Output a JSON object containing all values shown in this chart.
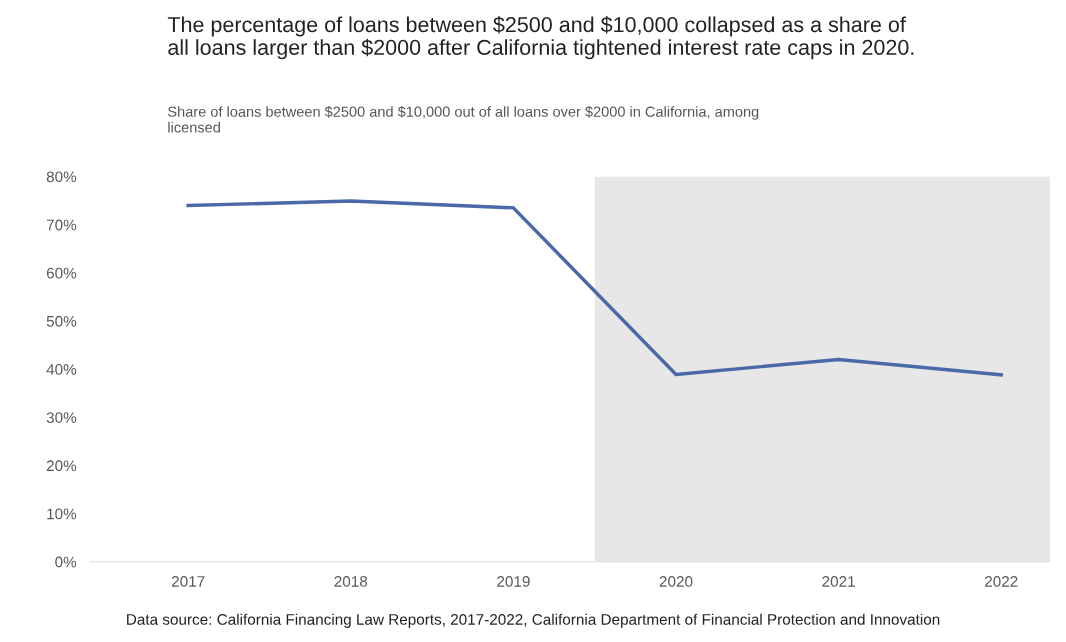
{
  "chart_data": {
    "type": "line",
    "title": "The percentage of loans between $2500 and $10,000 collapsed as a share of\nall loans larger than $2000 after California tightened interest rate caps in 2020.",
    "subtitle": "Share of loans between $2500 and $10,000 out of all loans over $2000 in California, among\nlicensed",
    "x": [
      2017,
      2018,
      2019,
      2020,
      2021,
      2022
    ],
    "series": [
      {
        "color": "#4a69a8",
        "values": [
          74.0,
          74.9,
          73.5,
          38.9,
          42.0,
          38.8
        ]
      }
    ],
    "xlim": [
      2016.4,
      2022.3
    ],
    "xticks": [
      2017,
      2018,
      2019,
      2020,
      2021,
      2022
    ],
    "ylim": [
      0,
      80
    ],
    "yticks": [
      {
        "value": 0,
        "label": "0%"
      },
      {
        "value": 10,
        "label": "10%"
      },
      {
        "value": 20,
        "label": "20%"
      },
      {
        "value": 30,
        "label": "30%"
      },
      {
        "value": 40,
        "label": "40%"
      },
      {
        "value": 50,
        "label": "50%"
      },
      {
        "value": 60,
        "label": "60%"
      },
      {
        "value": 70,
        "label": "70%"
      },
      {
        "value": 80,
        "label": "80%"
      }
    ],
    "bands": [
      {
        "axis": "x",
        "from": 2019.5,
        "to": 2022.3,
        "color": "#e8e7e8"
      }
    ],
    "annotations": [
      "Data source: California Financing Law Reports, 2017-2022, California Department of Financial Protection and Innovation"
    ],
    "grid": false,
    "legend": false,
    "marker": "none",
    "line_style": "solid"
  }
}
